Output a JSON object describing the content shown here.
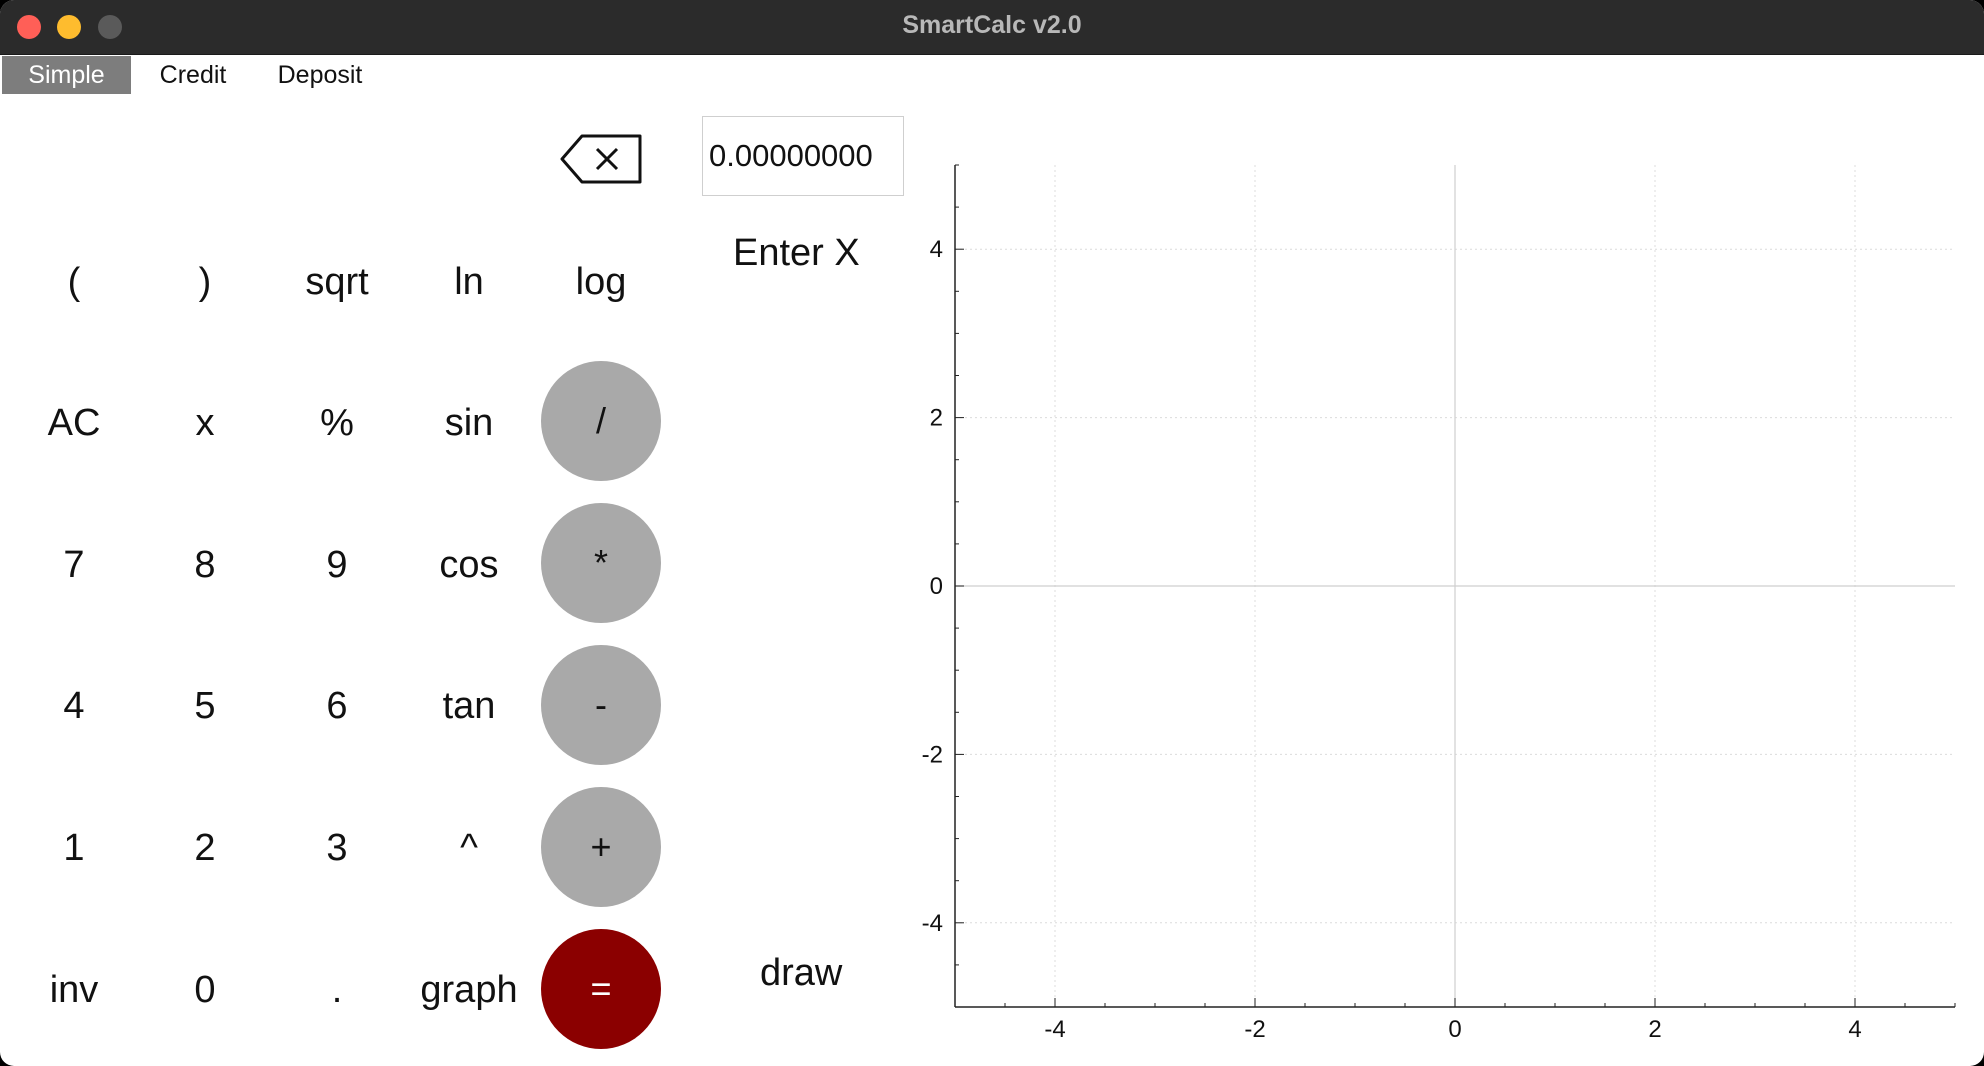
{
  "window": {
    "title": "SmartCalc v2.0"
  },
  "tabs": [
    "Simple",
    "Credit",
    "Deposit"
  ],
  "keypad": {
    "row_funcs": [
      "(",
      ")",
      "sqrt",
      "ln",
      "log"
    ],
    "row1": [
      "AC",
      "x",
      "%",
      "sin"
    ],
    "row2": [
      "7",
      "8",
      "9",
      "cos"
    ],
    "row3": [
      "4",
      "5",
      "6",
      "tan"
    ],
    "row4": [
      "1",
      "2",
      "3",
      "^"
    ],
    "row5": [
      "inv",
      "0",
      ".",
      "graph"
    ],
    "ops": [
      "/",
      "*",
      "-",
      "+",
      "="
    ]
  },
  "x_input": {
    "value": "0.00000000",
    "label": "Enter X"
  },
  "draw_button": "draw",
  "icons": {
    "backspace": "backspace-icon"
  },
  "colors": {
    "operator_bg": "#a9a9a9",
    "equals_bg": "#8b0000",
    "active_tab_bg": "#7d7d7d"
  },
  "chart_data": {
    "type": "line",
    "series": [],
    "xlim": [
      -5,
      5
    ],
    "ylim": [
      -5,
      5
    ],
    "x_ticks": [
      "-4",
      "-2",
      "0",
      "2",
      "4"
    ],
    "y_ticks": [
      "4",
      "2",
      "0",
      "-2",
      "-4"
    ],
    "grid": true
  }
}
